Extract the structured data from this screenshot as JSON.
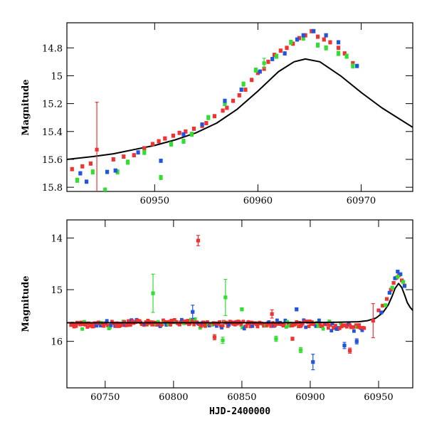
{
  "chart_data": [
    {
      "id": "zoom",
      "type": "scatter",
      "title": "",
      "xlabel": "",
      "ylabel": "Magnitude",
      "xlim": [
        60941.5,
        60975
      ],
      "ylim": [
        15.83,
        14.62
      ],
      "y_inverted": true,
      "x_ticks": [
        60950,
        60960,
        60970
      ],
      "x_tick_labels": [
        "60950",
        "60960",
        "60970"
      ],
      "y_ticks": [
        14.8,
        15,
        15.2,
        15.4,
        15.6,
        15.8
      ],
      "y_tick_labels": [
        "14.8",
        "15",
        "15.2",
        "15.4",
        "15.6",
        "15.8"
      ],
      "grid": false,
      "colors": {
        "red": "#ee3333",
        "green": "#33dd33",
        "blue": "#2255dd",
        "model": "#000000"
      },
      "model": {
        "name": "model",
        "x": [
          60941.5,
          60944,
          60946,
          60948,
          60950,
          60952,
          60954,
          60956,
          60958,
          60960,
          60962,
          60963.5,
          60964.6,
          60966,
          60968,
          60970,
          60972,
          60975
        ],
        "y": [
          15.6,
          15.58,
          15.56,
          15.53,
          15.5,
          15.46,
          15.41,
          15.34,
          15.24,
          15.11,
          14.97,
          14.9,
          14.88,
          14.9,
          15.0,
          15.12,
          15.23,
          15.37
        ]
      },
      "series": [
        {
          "name": "red",
          "x": [
            60942,
            60943,
            60943.8,
            60944.4,
            60946,
            60947,
            60948,
            60949,
            60949.8,
            60950.4,
            60951,
            60951.8,
            60952.4,
            60953,
            60953.8,
            60954.6,
            60955,
            60955.8,
            60956.6,
            60957,
            60957.6,
            60958.2,
            60958.8,
            60959.4,
            60960,
            60960.6,
            60961,
            60961.6,
            60962.2,
            60962.8,
            60963.4,
            60964,
            60964.6,
            60965.2,
            60965.8,
            60966.4,
            60967,
            60967.8,
            60968.4,
            60969.2
          ],
          "y": [
            15.67,
            15.65,
            15.63,
            15.53,
            15.6,
            15.58,
            15.57,
            15.52,
            15.49,
            15.47,
            15.45,
            15.43,
            15.41,
            15.4,
            15.38,
            15.36,
            15.34,
            15.29,
            15.25,
            15.23,
            15.18,
            15.14,
            15.1,
            15.03,
            14.98,
            14.95,
            14.9,
            14.85,
            14.82,
            14.8,
            14.77,
            14.73,
            14.71,
            14.68,
            14.72,
            14.74,
            14.76,
            14.8,
            14.84,
            14.91
          ],
          "yerr": [
            0.012,
            0.012,
            0.012,
            0.34,
            0.012,
            0.012,
            0.012,
            0.012,
            0.012,
            0.012,
            0.012,
            0.012,
            0.012,
            0.012,
            0.012,
            0.012,
            0.012,
            0.012,
            0.012,
            0.012,
            0.012,
            0.012,
            0.012,
            0.012,
            0.012,
            0.012,
            0.012,
            0.012,
            0.012,
            0.012,
            0.012,
            0.012,
            0.012,
            0.012,
            0.012,
            0.012,
            0.012,
            0.012,
            0.012,
            0.012
          ]
        },
        {
          "name": "green",
          "x": [
            60942.5,
            60944,
            60945.2,
            60946.4,
            60947.4,
            60949,
            60950.6,
            60951.6,
            60952.8,
            60953.6,
            60955.2,
            60956.8,
            60958.6,
            60959.8,
            60960.6,
            60961.8,
            60963.2,
            60964.4,
            60965.8,
            60966.6,
            60967.8,
            60968.6,
            60969.2
          ],
          "y": [
            15.75,
            15.69,
            15.82,
            15.69,
            15.62,
            15.55,
            15.73,
            15.49,
            15.47,
            15.42,
            15.3,
            15.2,
            15.06,
            14.96,
            14.91,
            14.86,
            14.76,
            14.73,
            14.78,
            14.8,
            14.84,
            14.86,
            14.93
          ],
          "yerr": [
            0.015,
            0.015,
            0.015,
            0.015,
            0.015,
            0.015,
            0.015,
            0.015,
            0.015,
            0.015,
            0.015,
            0.015,
            0.015,
            0.015,
            0.035,
            0.015,
            0.015,
            0.015,
            0.015,
            0.015,
            0.015,
            0.015,
            0.015
          ]
        },
        {
          "name": "blue",
          "x": [
            60942.8,
            60943.4,
            60945.4,
            60946.2,
            60948.4,
            60950.6,
            60952.8,
            60954.6,
            60956.8,
            60958.4,
            60960.2,
            60961.4,
            60962.6,
            60963.8,
            60964.4,
            60965.4,
            60966.6,
            60967.8,
            60969.6
          ],
          "y": [
            15.7,
            15.76,
            15.69,
            15.68,
            15.55,
            15.61,
            15.42,
            15.35,
            15.18,
            15.1,
            14.97,
            14.88,
            14.84,
            14.74,
            14.71,
            14.68,
            14.71,
            14.76,
            14.93
          ],
          "yerr": [
            0.012,
            0.012,
            0.012,
            0.012,
            0.012,
            0.012,
            0.012,
            0.012,
            0.012,
            0.012,
            0.012,
            0.012,
            0.012,
            0.012,
            0.012,
            0.012,
            0.012,
            0.012,
            0.012
          ]
        }
      ]
    },
    {
      "id": "full",
      "type": "scatter",
      "title": "",
      "xlabel": "HJD-2400000",
      "ylabel": "Magnitude",
      "xlim": [
        60722,
        60975
      ],
      "ylim": [
        16.9,
        13.65
      ],
      "y_inverted": true,
      "x_ticks": [
        60750,
        60800,
        60850,
        60900,
        60950
      ],
      "x_tick_labels": [
        "60750",
        "60800",
        "60850",
        "60900",
        "60950"
      ],
      "y_ticks": [
        14,
        15,
        16
      ],
      "y_tick_labels": [
        "14",
        "15",
        "16"
      ],
      "grid": false,
      "colors": {
        "red": "#ee3333",
        "green": "#33dd33",
        "blue": "#2255dd",
        "model": "#000000"
      },
      "model": {
        "name": "model",
        "x": [
          60722,
          60800,
          60880,
          60920,
          60935,
          60942,
          60948,
          60953,
          60957,
          60960,
          60962,
          60964.6,
          60967,
          60969,
          60971,
          60973,
          60975
        ],
        "y": [
          15.64,
          15.64,
          15.64,
          15.63,
          15.62,
          15.6,
          15.55,
          15.45,
          15.3,
          15.12,
          14.98,
          14.88,
          14.96,
          15.1,
          15.25,
          15.34,
          15.4
        ]
      },
      "band": {
        "name": "red",
        "x_start": 60725,
        "x_end": 60940,
        "center": [
          [
            60725,
            15.68
          ],
          [
            60750,
            15.67
          ],
          [
            60780,
            15.64
          ],
          [
            60800,
            15.63
          ],
          [
            60820,
            15.66
          ],
          [
            60840,
            15.66
          ],
          [
            60860,
            15.67
          ],
          [
            60880,
            15.67
          ],
          [
            60900,
            15.66
          ],
          [
            60920,
            15.72
          ],
          [
            60940,
            15.72
          ]
        ]
      },
      "outliers": [
        {
          "series": "red",
          "x": 60818,
          "y": 14.05,
          "yerr": 0.1
        },
        {
          "series": "red",
          "x": 60872,
          "y": 15.47,
          "yerr": 0.08
        },
        {
          "series": "red",
          "x": 60830,
          "y": 15.92,
          "yerr": 0.05
        },
        {
          "series": "red",
          "x": 60929,
          "y": 16.18,
          "yerr": 0.05
        },
        {
          "series": "red",
          "x": 60946,
          "y": 15.6,
          "yerr": 0.33
        },
        {
          "series": "red",
          "x": 60887,
          "y": 15.95,
          "yerr": 0.03
        },
        {
          "series": "green",
          "x": 60785,
          "y": 15.07,
          "yerr": 0.37
        },
        {
          "series": "green",
          "x": 60838,
          "y": 15.15,
          "yerr": 0.35
        },
        {
          "series": "green",
          "x": 60836,
          "y": 15.98,
          "yerr": 0.06
        },
        {
          "series": "green",
          "x": 60893,
          "y": 16.17,
          "yerr": 0.05
        },
        {
          "series": "green",
          "x": 60850,
          "y": 15.38,
          "yerr": 0.03
        },
        {
          "series": "green",
          "x": 60875,
          "y": 15.95,
          "yerr": 0.05
        },
        {
          "series": "blue",
          "x": 60902,
          "y": 16.4,
          "yerr": 0.15
        },
        {
          "series": "blue",
          "x": 60814,
          "y": 15.43,
          "yerr": 0.13
        },
        {
          "series": "blue",
          "x": 60890,
          "y": 15.38,
          "yerr": 0.03
        },
        {
          "series": "blue",
          "x": 60925,
          "y": 16.08,
          "yerr": 0.06
        },
        {
          "series": "blue",
          "x": 60934,
          "y": 16.0,
          "yerr": 0.05
        }
      ],
      "peak": [
        {
          "series": "red",
          "x": 60950,
          "y": 15.4
        },
        {
          "series": "red",
          "x": 60953,
          "y": 15.31
        },
        {
          "series": "red",
          "x": 60956,
          "y": 15.18
        },
        {
          "series": "red",
          "x": 60959,
          "y": 15.0
        },
        {
          "series": "red",
          "x": 60961,
          "y": 14.87
        },
        {
          "series": "red",
          "x": 60963,
          "y": 14.77
        },
        {
          "series": "red",
          "x": 60965,
          "y": 14.72
        },
        {
          "series": "red",
          "x": 60967,
          "y": 14.82
        },
        {
          "series": "red",
          "x": 60969,
          "y": 14.92
        },
        {
          "series": "blue",
          "x": 60952,
          "y": 15.44
        },
        {
          "series": "blue",
          "x": 60958,
          "y": 15.06
        },
        {
          "series": "blue",
          "x": 60962,
          "y": 14.78
        },
        {
          "series": "blue",
          "x": 60964,
          "y": 14.65
        },
        {
          "series": "blue",
          "x": 60966,
          "y": 14.7
        },
        {
          "series": "blue",
          "x": 60969,
          "y": 14.93
        },
        {
          "series": "green",
          "x": 60955,
          "y": 15.3
        },
        {
          "series": "green",
          "x": 60960,
          "y": 14.96
        },
        {
          "series": "green",
          "x": 60964,
          "y": 14.75
        },
        {
          "series": "green",
          "x": 60968,
          "y": 14.85
        }
      ]
    }
  ]
}
